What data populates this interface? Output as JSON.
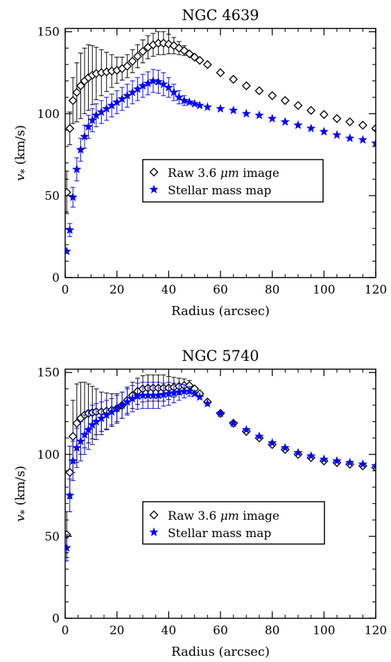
{
  "chart_data": [
    {
      "type": "scatter",
      "title": "NGC 4639",
      "xlabel": "Radius (arcsec)",
      "ylabel": "v_* (km/s)",
      "ylabel_main": "v",
      "ylabel_sub": "*",
      "ylabel_unit": " (km/s)",
      "xlim": [
        0,
        120
      ],
      "ylim": [
        0,
        152
      ],
      "xticks": [
        0,
        20,
        40,
        60,
        80,
        100,
        120
      ],
      "yticks": [
        0,
        50,
        100,
        150
      ],
      "grid": false,
      "legend_position": "center",
      "series": [
        {
          "name": "Raw 3.6 μm image",
          "legend_text": "Raw 3.6 ",
          "legend_mu": "μm",
          "legend_tail": " image",
          "marker": "diamond",
          "color": "#000000",
          "x": [
            0.6,
            1.8,
            3.0,
            4.5,
            6.0,
            7.5,
            9.0,
            10.5,
            12,
            14,
            16,
            18,
            20,
            22,
            24,
            26,
            28,
            30,
            32,
            34,
            36,
            38,
            40,
            42,
            44,
            46,
            48,
            50,
            52,
            55,
            60,
            65,
            70,
            75,
            80,
            85,
            90,
            95,
            100,
            105,
            110,
            115,
            120
          ],
          "y": [
            52,
            91,
            108,
            113,
            117,
            120,
            122,
            123.5,
            124.5,
            125,
            125.5,
            126,
            126.5,
            127.5,
            129,
            132,
            135,
            138,
            140.5,
            142,
            143,
            143,
            142.5,
            141.5,
            140,
            138.5,
            136.5,
            134.5,
            132.5,
            130,
            125,
            121,
            117,
            114,
            111,
            108,
            105,
            102,
            99.5,
            97,
            95,
            93,
            91
          ],
          "err": [
            13,
            10,
            14,
            18,
            20,
            20,
            20,
            18,
            16,
            14,
            12,
            10,
            8,
            7,
            7,
            7,
            7,
            7,
            7,
            7,
            7,
            7,
            6,
            5,
            4,
            3,
            2,
            1.5,
            1.5,
            1.5,
            1.5,
            1.5,
            1.5,
            1.5,
            1.5,
            1.5,
            1.5,
            1.5,
            1.5,
            1.5,
            1.5,
            1.5,
            1.5
          ]
        },
        {
          "name": "Stellar mass map",
          "marker": "star",
          "color": "#0000ff",
          "x": [
            0.6,
            1.8,
            3.0,
            4.5,
            6.0,
            7.5,
            9.0,
            10.5,
            12,
            14,
            16,
            18,
            20,
            22,
            24,
            26,
            28,
            30,
            32,
            34,
            36,
            38,
            40,
            42,
            44,
            46,
            48,
            50,
            52,
            55,
            60,
            65,
            70,
            75,
            80,
            85,
            90,
            95,
            100,
            105,
            110,
            115,
            120
          ],
          "y": [
            16,
            29,
            49,
            66,
            78,
            86,
            92,
            96,
            99,
            101,
            103,
            105,
            107,
            109,
            111,
            113,
            115,
            117,
            118.5,
            120,
            119.5,
            118,
            116,
            113,
            110,
            108,
            107,
            106,
            105,
            104,
            103,
            102,
            100,
            99,
            97,
            95,
            93,
            91,
            89,
            87,
            85,
            84,
            82
          ],
          "err": [
            2,
            4,
            6,
            7,
            7,
            7,
            7,
            7,
            7,
            7,
            7,
            7,
            7,
            7,
            7,
            7,
            7,
            7,
            7,
            7,
            7,
            7,
            6,
            5,
            4,
            3,
            2,
            1.5,
            1.5,
            1.5,
            1.5,
            1.5,
            1.5,
            1.5,
            1.5,
            1.5,
            1.5,
            1.5,
            1.5,
            1.5,
            1.5,
            1.5,
            1.5
          ]
        }
      ]
    },
    {
      "type": "scatter",
      "title": "NGC 5740",
      "xlabel": "Radius (arcsec)",
      "ylabel": "v_* (km/s)",
      "ylabel_main": "v",
      "ylabel_sub": "*",
      "ylabel_unit": " (km/s)",
      "xlim": [
        0,
        120
      ],
      "ylim": [
        0,
        152
      ],
      "xticks": [
        0,
        20,
        40,
        60,
        80,
        100,
        120
      ],
      "yticks": [
        0,
        50,
        100,
        150
      ],
      "grid": false,
      "legend_position": "center",
      "series": [
        {
          "name": "Raw 3.6 μm image",
          "legend_text": "Raw 3.6 ",
          "legend_mu": "μm",
          "legend_tail": " image",
          "marker": "diamond",
          "color": "#000000",
          "x": [
            0.6,
            1.8,
            3.0,
            4.5,
            6.0,
            7.5,
            9.0,
            10.5,
            12,
            14,
            16,
            18,
            20,
            22,
            24,
            26,
            28,
            30,
            32,
            34,
            36,
            38,
            40,
            42,
            44,
            46,
            48,
            50,
            52,
            55,
            60,
            65,
            70,
            75,
            80,
            85,
            90,
            95,
            100,
            105,
            110,
            115,
            120
          ],
          "y": [
            51,
            89,
            111,
            119,
            122,
            124,
            125,
            125.5,
            126,
            126,
            126.5,
            127,
            128,
            130,
            133,
            136,
            138.5,
            140,
            140.5,
            140.5,
            140.5,
            140.5,
            140.5,
            141,
            141.5,
            142,
            142,
            140,
            137,
            132,
            125,
            119,
            114,
            110,
            106,
            103,
            100,
            98,
            96,
            95,
            94,
            93,
            92
          ],
          "err": [
            14,
            16,
            22,
            24,
            22,
            20,
            18,
            16,
            14,
            12,
            11,
            10,
            9,
            8,
            8,
            8,
            8,
            8,
            8,
            8,
            8,
            8,
            7,
            6,
            5,
            4,
            3,
            2,
            1.5,
            1.5,
            1.5,
            1.5,
            1.5,
            1.5,
            1.5,
            1.5,
            1.5,
            1.5,
            1.5,
            1.5,
            1.5,
            1.5,
            1.5
          ]
        },
        {
          "name": "Stellar mass map",
          "marker": "star",
          "color": "#0000ff",
          "x": [
            0.6,
            1.8,
            3.0,
            4.5,
            6.0,
            7.5,
            9.0,
            10.5,
            12,
            14,
            16,
            18,
            20,
            22,
            24,
            26,
            28,
            30,
            32,
            34,
            36,
            38,
            40,
            42,
            44,
            46,
            48,
            50,
            52,
            55,
            60,
            65,
            70,
            75,
            80,
            85,
            90,
            95,
            100,
            105,
            110,
            115,
            120
          ],
          "y": [
            43,
            75,
            96,
            104,
            108,
            112,
            115,
            118,
            120,
            122,
            124,
            126,
            128,
            130,
            132,
            134,
            135.5,
            136,
            136,
            136,
            136,
            136.5,
            137,
            137.5,
            138,
            138.5,
            138.5,
            137,
            135,
            131,
            125,
            119,
            115,
            111,
            107,
            104,
            101,
            99,
            97,
            96,
            95,
            94,
            93
          ],
          "err": [
            8,
            10,
            12,
            12,
            12,
            12,
            12,
            12,
            11,
            10,
            9,
            8,
            8,
            8,
            8,
            8,
            8,
            8,
            8,
            8,
            8,
            7,
            7,
            6,
            5,
            4,
            3,
            2,
            1.5,
            1.5,
            1.5,
            1.5,
            1.5,
            1.5,
            1.5,
            1.5,
            1.5,
            1.5,
            1.5,
            1.5,
            1.5,
            1.5,
            1.5
          ]
        }
      ]
    }
  ]
}
